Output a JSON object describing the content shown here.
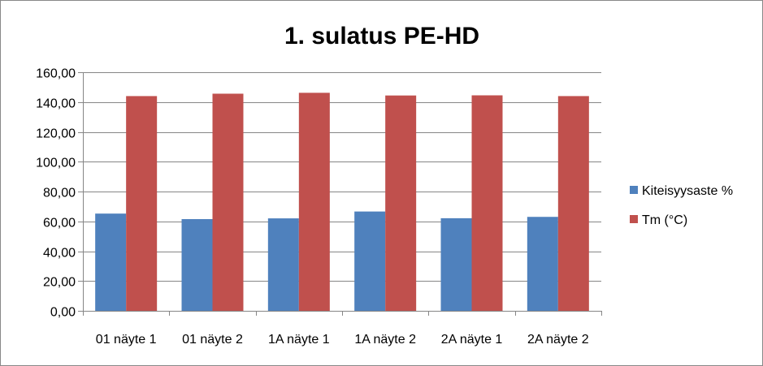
{
  "chart_data": {
    "type": "bar",
    "title": "1. sulatus PE-HD",
    "xlabel": "",
    "ylabel": "",
    "categories": [
      "01 näyte 1",
      "01 näyte 2",
      "1A näyte 1",
      "1A näyte 2",
      "2A näyte 1",
      "2A näyte 2"
    ],
    "series": [
      {
        "name": "Kiteisyysaste %",
        "color": "#4F81BD",
        "values": [
          65.2,
          61.5,
          62.0,
          66.6,
          62.1,
          63.0
        ]
      },
      {
        "name": "Tm (°C)",
        "color": "#C0504D",
        "values": [
          144.0,
          145.6,
          146.2,
          144.4,
          144.5,
          144.0
        ]
      }
    ],
    "ylim": [
      0,
      160
    ],
    "ytick_labels": [
      "0,00",
      "20,00",
      "40,00",
      "60,00",
      "80,00",
      "100,00",
      "120,00",
      "140,00",
      "160,00"
    ],
    "grid": true,
    "legend_position": "right"
  }
}
